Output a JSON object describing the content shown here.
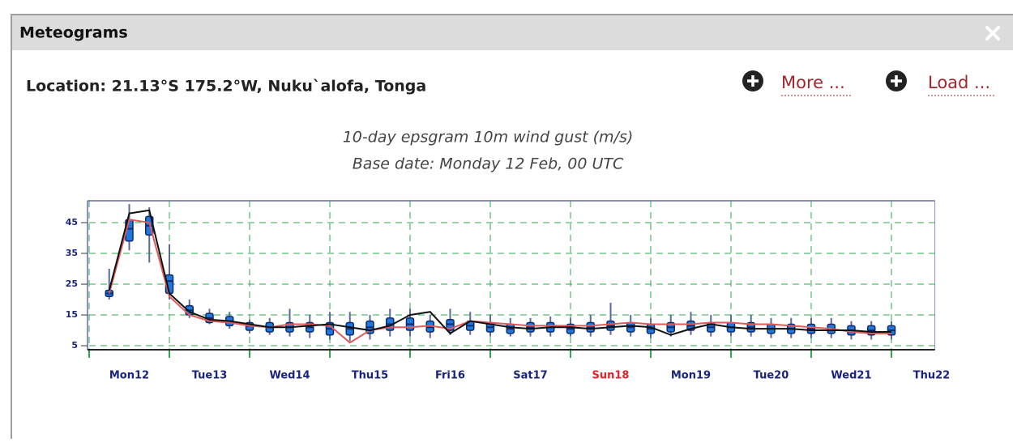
{
  "window": {
    "title": "Meteograms"
  },
  "location": "Location: 21.13°S 175.2°W, Nuku`alofa, Tonga",
  "links": [
    "More ...",
    "Load ..."
  ],
  "chart_data": {
    "type": "boxplot",
    "title": "10-day epsgram 10m wind gust (m/s)",
    "subtitle": "Base date: Monday 12 Feb, 00 UTC",
    "x": [
      6,
      12,
      18,
      24,
      30,
      36,
      42,
      48,
      54,
      60,
      66,
      72,
      78,
      84,
      90,
      96,
      102,
      108,
      114,
      120,
      126,
      132,
      138,
      144,
      150,
      156,
      162,
      168,
      174,
      180,
      186,
      192,
      198,
      204,
      210,
      216,
      222,
      228,
      234,
      240
    ],
    "boxes": {
      "color": "#1f78dc",
      "low": [
        20,
        36,
        32,
        20,
        14,
        12,
        10.5,
        9,
        8.5,
        8,
        7.5,
        7,
        6.5,
        7,
        8,
        8,
        7.5,
        8.5,
        8.5,
        8,
        8,
        8,
        8,
        8,
        8,
        8.5,
        8,
        7.5,
        8,
        8.5,
        8,
        8,
        8,
        7.5,
        7.5,
        7.5,
        7.5,
        7,
        7,
        7
      ],
      "q1": [
        21,
        39,
        41,
        22,
        15,
        12.5,
        11.5,
        10,
        9.5,
        9.5,
        9.5,
        8.5,
        8.5,
        9,
        10,
        10,
        9.5,
        10,
        10,
        9.5,
        9,
        9.5,
        9.5,
        9,
        9.5,
        10,
        9.5,
        9,
        9.5,
        10,
        9.5,
        9.5,
        9.5,
        9,
        9,
        9,
        9,
        8.5,
        8.5,
        8.5
      ],
      "median": [
        22,
        43,
        44,
        26,
        16.5,
        14,
        13,
        11.5,
        11,
        11,
        11,
        10.5,
        10.5,
        11,
        12,
        12,
        11,
        12,
        11.5,
        11,
        10.5,
        11,
        11,
        10.5,
        11,
        11.5,
        11,
        10.5,
        11,
        11.5,
        11,
        11,
        11,
        10.5,
        10.5,
        10.5,
        10.5,
        10,
        10,
        10
      ],
      "q3": [
        23,
        46,
        47,
        28,
        18,
        15.5,
        14.5,
        12.5,
        12.5,
        12.5,
        12.5,
        12.5,
        12.5,
        13,
        14,
        14,
        13,
        13.5,
        13,
        12.5,
        12,
        12.5,
        12.5,
        12,
        12.5,
        13,
        12.5,
        12,
        12.5,
        13,
        12.5,
        12.5,
        12.5,
        12,
        12,
        12,
        12,
        11.5,
        11.5,
        11.5
      ],
      "high": [
        30,
        51,
        50,
        38,
        20,
        17,
        16,
        13.5,
        14,
        17,
        15,
        16,
        16,
        15,
        17,
        17,
        15,
        17,
        16,
        15,
        14,
        14,
        14.5,
        14,
        15,
        19,
        15,
        14,
        15,
        16,
        15,
        15,
        15,
        14,
        14,
        14,
        14,
        13,
        13,
        13
      ]
    },
    "series": [
      {
        "color": "#e05a5a",
        "values": [
          22,
          46,
          45,
          21,
          15,
          13,
          12.5,
          11.5,
          11,
          12,
          12,
          11.5,
          6,
          10,
          11,
          11,
          11.5,
          10.5,
          13,
          12.5,
          12,
          11.5,
          11.5,
          11.5,
          11.5,
          12,
          12.5,
          12,
          12,
          12,
          12.5,
          12.5,
          12,
          12,
          11.5,
          11,
          10.5,
          9.5,
          9,
          9
        ]
      },
      {
        "color": "#111111",
        "values": [
          23,
          48,
          49,
          22,
          16,
          13.5,
          13,
          12,
          11,
          11,
          11.5,
          12,
          11,
          10,
          11.5,
          15,
          16,
          9,
          13,
          12,
          11,
          10.5,
          11,
          11,
          10.5,
          11,
          11.5,
          11,
          8.5,
          10.5,
          12,
          11,
          10.5,
          10.5,
          10.5,
          10,
          10,
          10,
          9.5,
          9.5
        ]
      }
    ],
    "xlim": [
      0,
      253
    ],
    "ylim": [
      3.7,
      52.1
    ],
    "xticks": [
      0,
      24,
      48,
      72,
      96,
      120,
      144,
      168,
      192,
      216,
      240
    ],
    "xtick_labels": [
      {
        "value": 12,
        "label": "Mon12"
      },
      {
        "value": 36,
        "label": "Tue13"
      },
      {
        "value": 60,
        "label": "Wed14"
      },
      {
        "value": 84,
        "label": "Thu15"
      },
      {
        "value": 108,
        "label": "Fri16"
      },
      {
        "value": 132,
        "label": "Sat17"
      },
      {
        "value": 156,
        "label": "Sun18",
        "color": "#e8202a"
      },
      {
        "value": 180,
        "label": "Mon19"
      },
      {
        "value": 204,
        "label": "Tue20"
      },
      {
        "value": 228,
        "label": "Wed21"
      },
      {
        "value": 252,
        "label": "Thu22"
      }
    ],
    "yticks": [
      5,
      15,
      25,
      35,
      45
    ],
    "grid": true,
    "grid_color": "#2fa84f",
    "label_color": "#1a237e"
  }
}
